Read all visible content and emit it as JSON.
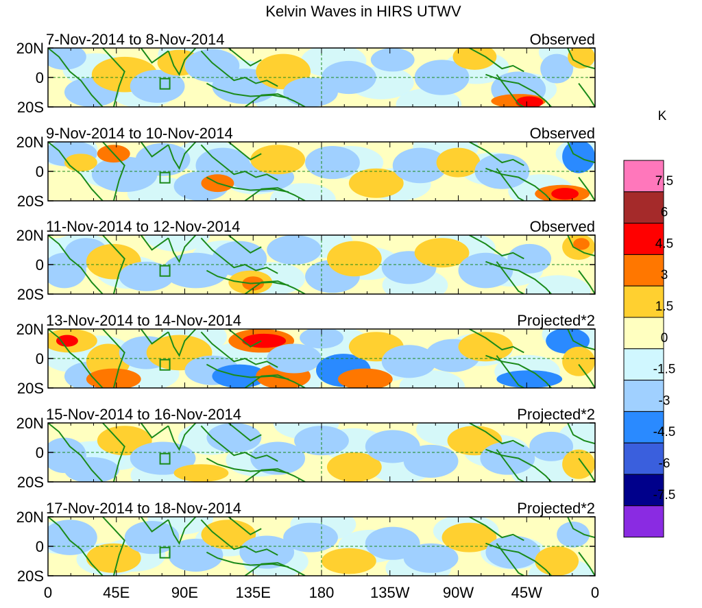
{
  "figure": {
    "title": "Kelvin Waves in HIRS UTWV",
    "unit": "K"
  },
  "latitude_ticks": [
    "20N",
    "0",
    "20S"
  ],
  "longitude_ticks": [
    "0",
    "45E",
    "90E",
    "135E",
    "180",
    "135W",
    "90W",
    "45W",
    "0"
  ],
  "panels": [
    {
      "date_range": "7-Nov-2014 to 8-Nov-2014",
      "type": "Observed"
    },
    {
      "date_range": "9-Nov-2014 to 10-Nov-2014",
      "type": "Observed"
    },
    {
      "date_range": "11-Nov-2014 to 12-Nov-2014",
      "type": "Observed"
    },
    {
      "date_range": "13-Nov-2014 to 14-Nov-2014",
      "type": "Projected*2"
    },
    {
      "date_range": "15-Nov-2014 to 16-Nov-2014",
      "type": "Projected*2"
    },
    {
      "date_range": "17-Nov-2014 to 18-Nov-2014",
      "type": "Projected*2"
    }
  ],
  "colorbar": {
    "colors": [
      "#ff77bb",
      "#a52a2a",
      "#ff0000",
      "#ff7700",
      "#ffd030",
      "#ffffc0",
      "#d0f7ff",
      "#a0d0ff",
      "#2a8aff",
      "#3a5fdd",
      "#00008b",
      "#8a2be2"
    ],
    "labels": [
      "7.5",
      "6",
      "4.5",
      "3",
      "1.5",
      "0",
      "-1.5",
      "-3",
      "-4.5",
      "-6",
      "-7.5"
    ]
  },
  "map_colors": {
    "coast": "#1a8a1a",
    "equator": "#1a8a1a",
    "background": "#ffffc0"
  }
}
